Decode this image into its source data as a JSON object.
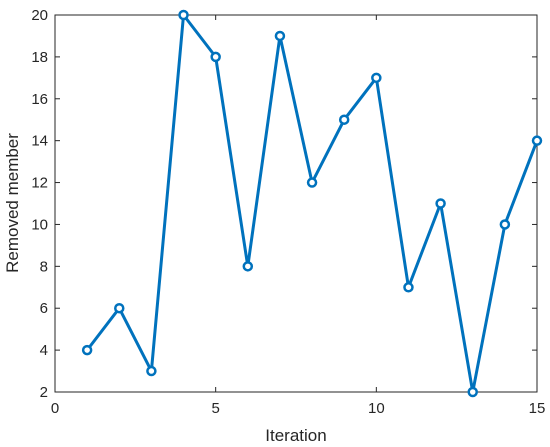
{
  "chart_data": {
    "type": "line",
    "xlabel": "Iteration",
    "ylabel": "Removed member",
    "xlim": [
      0,
      15
    ],
    "ylim": [
      2,
      20
    ],
    "xticks": [
      0,
      5,
      10,
      15
    ],
    "yticks": [
      2,
      4,
      6,
      8,
      10,
      12,
      14,
      16,
      18,
      20
    ],
    "grid": false,
    "marker": "circle",
    "line_color": "#0072BD",
    "series": [
      {
        "x": [
          1,
          2,
          3,
          4,
          5,
          6,
          7,
          8,
          9,
          10,
          11,
          12,
          13,
          14,
          15
        ],
        "values": [
          4,
          6,
          3,
          20,
          18,
          8,
          19,
          12,
          15,
          17,
          7,
          11,
          2,
          10,
          14
        ]
      }
    ]
  }
}
